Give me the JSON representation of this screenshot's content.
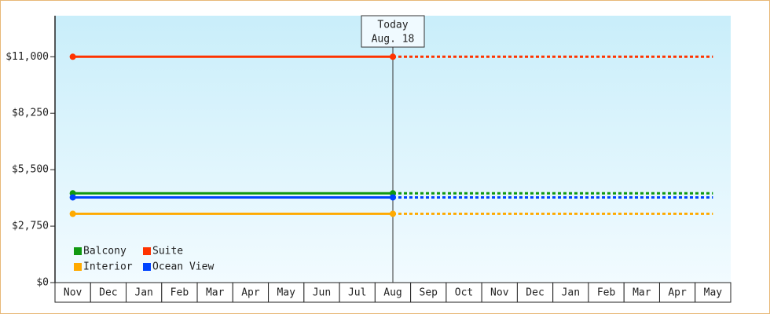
{
  "chart_data": {
    "type": "line",
    "categories": [
      "Nov",
      "Dec",
      "Jan",
      "Feb",
      "Mar",
      "Apr",
      "May",
      "Jun",
      "Jul",
      "Aug",
      "Sep",
      "Oct",
      "Nov",
      "Dec",
      "Jan",
      "Feb",
      "Mar",
      "Apr",
      "May"
    ],
    "series": [
      {
        "name": "Balcony",
        "color": "#119911",
        "values": [
          4350,
          4350,
          4350,
          4350,
          4350,
          4350,
          4350,
          4350,
          4350,
          4350,
          4350,
          4350,
          4350,
          4350,
          4350,
          4350,
          4350,
          4350,
          4350
        ]
      },
      {
        "name": "Suite",
        "color": "#ff3300",
        "values": [
          11000,
          11000,
          11000,
          11000,
          11000,
          11000,
          11000,
          11000,
          11000,
          11000,
          11000,
          11000,
          11000,
          11000,
          11000,
          11000,
          11000,
          11000,
          11000
        ]
      },
      {
        "name": "Interior",
        "color": "#ffaa00",
        "values": [
          3350,
          3350,
          3350,
          3350,
          3350,
          3350,
          3350,
          3350,
          3350,
          3350,
          3350,
          3350,
          3350,
          3350,
          3350,
          3350,
          3350,
          3350,
          3350
        ]
      },
      {
        "name": "Ocean View",
        "color": "#0044ff",
        "values": [
          4150,
          4150,
          4150,
          4150,
          4150,
          4150,
          4150,
          4150,
          4150,
          4150,
          4150,
          4150,
          4150,
          4150,
          4150,
          4150,
          4150,
          4150,
          4150
        ]
      }
    ],
    "today": {
      "label": "Today",
      "date": "Aug. 18",
      "category": "Aug"
    },
    "ylim": [
      0,
      13000
    ],
    "yticks": [
      {
        "value": 0,
        "label": "$0"
      },
      {
        "value": 2750,
        "label": "$2,750"
      },
      {
        "value": 5500,
        "label": "$5,500"
      },
      {
        "value": 8250,
        "label": "$8,250"
      },
      {
        "value": 11000,
        "label": "$11,000"
      }
    ]
  }
}
